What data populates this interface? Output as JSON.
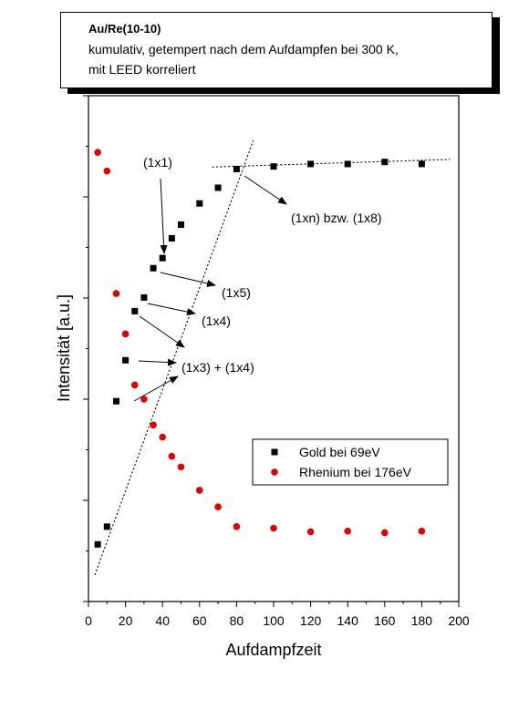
{
  "header": {
    "title": "Au/Re(10-10)",
    "subtitle_line1": "kumulativ, getempert nach dem Aufdampfen bei 300 K,",
    "subtitle_line2": "mit LEED korreliert"
  },
  "chart_data": {
    "type": "scatter",
    "xlabel": "Aufdampfzeit",
    "ylabel": "Intensität [a.u.]",
    "xlim": [
      0,
      200
    ],
    "ylim": [
      0,
      100
    ],
    "y_tick_labels_shown": false,
    "x_ticks": [
      0,
      20,
      40,
      60,
      80,
      100,
      120,
      140,
      160,
      180,
      200
    ],
    "x_tick_labels": [
      "0",
      "20",
      "40",
      "60",
      "80",
      "100",
      "120",
      "140",
      "160",
      "180",
      "200"
    ],
    "legend_position": "lower-right",
    "series": [
      {
        "name": "Gold bei 69eV",
        "marker": "square",
        "color": "#000000",
        "x": [
          5,
          10,
          15,
          20,
          25,
          30,
          35,
          40,
          45,
          50,
          60,
          70,
          80,
          100,
          120,
          140,
          160,
          180
        ],
        "y": [
          11.3,
          14.8,
          39.6,
          47.7,
          57.4,
          60.1,
          65.9,
          67.9,
          71.8,
          74.5,
          78.7,
          81.8,
          85.5,
          86.0,
          86.5,
          86.5,
          86.9,
          86.5
        ]
      },
      {
        "name": "Rhenium bei 176eV",
        "marker": "circle",
        "color": "#e00000",
        "x": [
          5,
          10,
          15,
          20,
          25,
          30,
          35,
          40,
          45,
          50,
          60,
          70,
          80,
          100,
          120,
          140,
          160,
          180
        ],
        "y": [
          88.8,
          85.1,
          60.9,
          52.9,
          42.8,
          40.0,
          34.9,
          32.5,
          28.7,
          26.6,
          22.0,
          18.7,
          14.8,
          14.5,
          13.8,
          13.9,
          13.6,
          13.9
        ]
      }
    ],
    "fit_lines": [
      {
        "x": [
          3.5,
          89
        ],
        "y": [
          5.3,
          91.1
        ]
      },
      {
        "x": [
          67,
          195
        ],
        "y": [
          85.9,
          87.4
        ]
      }
    ],
    "annotations": [
      {
        "text": "(1x1)",
        "anchor": [
          39,
          70.5
        ]
      },
      {
        "text": "(1xn) bzw. (1x8)",
        "anchor": [
          80,
          84.4
        ]
      },
      {
        "text": "(1x5)",
        "anchor": [
          37,
          64.5
        ]
      },
      {
        "text": "(1x4)",
        "anchor": [
          32,
          58.6
        ]
      },
      {
        "text": "(1x3) + (1x4)",
        "anchor": [
          24,
          56.4
        ]
      }
    ]
  }
}
